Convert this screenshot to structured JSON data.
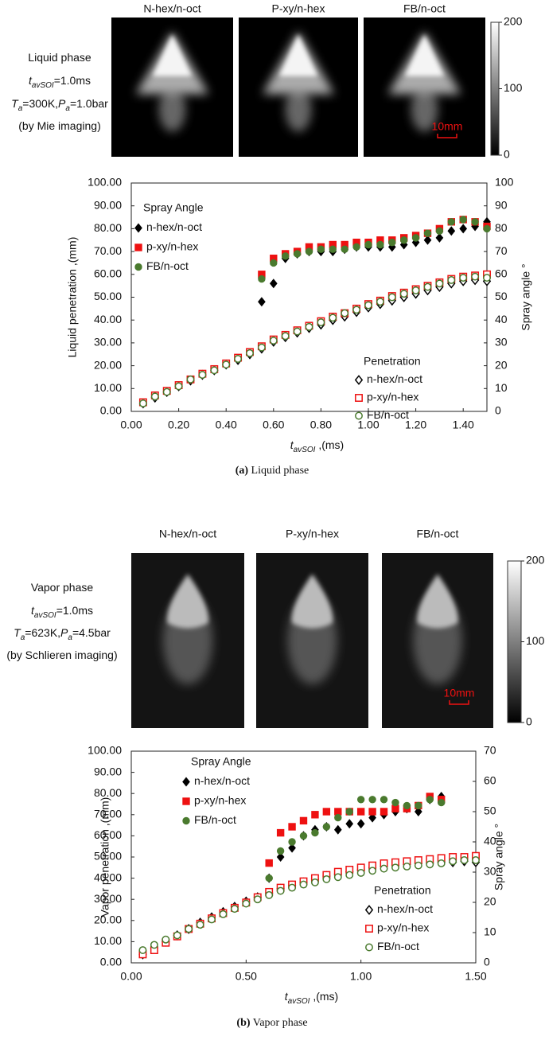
{
  "panels": [
    {
      "image_titles": [
        "N-hex/n-oct",
        "P-xy/n-hex",
        "FB/n-oct"
      ],
      "conditions": [
        [
          {
            "text": "Liquid phase"
          }
        ],
        [
          {
            "text": "t",
            "style": "italic"
          },
          {
            "text": "avSOI",
            "style": "italic-sub"
          },
          {
            "text": "=1.0ms"
          }
        ],
        [
          {
            "text": "T",
            "style": "italic"
          },
          {
            "text": "a",
            "style": "italic-sub"
          },
          {
            "text": "=300K,"
          },
          {
            "text": "P",
            "style": "italic"
          },
          {
            "text": "a",
            "style": "italic-sub"
          },
          {
            "text": "=1.0bar"
          }
        ],
        [
          {
            "text": "(by Mie imaging)"
          }
        ]
      ],
      "scale_bar": "10mm",
      "colorbar": {
        "lim": [
          0,
          200
        ],
        "ticks": [
          0,
          100,
          200
        ]
      },
      "caption": [
        {
          "text": "(a)",
          "style": "bold"
        },
        {
          "text": " Liquid phase"
        }
      ]
    },
    {
      "image_titles": [
        "N-hex/n-oct",
        "P-xy/n-hex",
        "FB/n-oct"
      ],
      "conditions": [
        [
          {
            "text": "Vapor phase"
          }
        ],
        [
          {
            "text": "t",
            "style": "italic"
          },
          {
            "text": "avSOI",
            "style": "italic-sub"
          },
          {
            "text": "=1.0ms"
          }
        ],
        [
          {
            "text": "T",
            "style": "italic"
          },
          {
            "text": "a",
            "style": "italic-sub"
          },
          {
            "text": "=623K,"
          },
          {
            "text": "P",
            "style": "italic"
          },
          {
            "text": "a",
            "style": "italic-sub"
          },
          {
            "text": "=4.5bar"
          }
        ],
        [
          {
            "text": "(by Schlieren imaging)"
          }
        ]
      ],
      "scale_bar": "10mm",
      "colorbar": {
        "lim": [
          0,
          200
        ],
        "ticks": [
          0,
          100,
          200
        ]
      },
      "caption": [
        {
          "text": "(b)",
          "style": "bold"
        },
        {
          "text": " Vapor phase"
        }
      ]
    }
  ],
  "chart_data": [
    {
      "type": "scatter",
      "x_label": [
        {
          "text": "t",
          "style": "italic"
        },
        {
          "text": "avSOI",
          "style": "italic-sub"
        },
        {
          "text": " ,(ms)"
        }
      ],
      "y_label": "Liquid penetration ,(mm)",
      "y2_label": "Spray angle °",
      "angle_legend_title": "Spray Angle",
      "penetration_legend_title": "Penetration",
      "xlim": [
        0,
        1.5
      ],
      "xticks": [
        {
          "value": 0,
          "label": "0.00"
        },
        {
          "value": 0.2,
          "label": "0.20"
        },
        {
          "value": 0.4,
          "label": "0.40"
        },
        {
          "value": 0.6,
          "label": "0.60"
        },
        {
          "value": 0.8,
          "label": "0.80"
        },
        {
          "value": 1.0,
          "label": "1.00"
        },
        {
          "value": 1.2,
          "label": "1.20"
        },
        {
          "value": 1.4,
          "label": "1.40"
        }
      ],
      "ylim": [
        0,
        100
      ],
      "yticks": [
        {
          "value": 0,
          "label": "0.00"
        },
        {
          "value": 10,
          "label": "10.00"
        },
        {
          "value": 20,
          "label": "20.00"
        },
        {
          "value": 30,
          "label": "30.00"
        },
        {
          "value": 40,
          "label": "40.00"
        },
        {
          "value": 50,
          "label": "50.00"
        },
        {
          "value": 60,
          "label": "60.00"
        },
        {
          "value": 70,
          "label": "70.00"
        },
        {
          "value": 80,
          "label": "80.00"
        },
        {
          "value": 90,
          "label": "90.00"
        },
        {
          "value": 100,
          "label": "100.00"
        }
      ],
      "y2lim": [
        0,
        100
      ],
      "y2ticks": [
        0,
        10,
        20,
        30,
        40,
        50,
        60,
        70,
        80,
        90,
        100
      ],
      "x": [
        0.05,
        0.1,
        0.15,
        0.2,
        0.25,
        0.3,
        0.35,
        0.4,
        0.45,
        0.5,
        0.55,
        0.6,
        0.65,
        0.7,
        0.75,
        0.8,
        0.85,
        0.9,
        0.95,
        1.0,
        1.05,
        1.1,
        1.15,
        1.2,
        1.25,
        1.3,
        1.35,
        1.4,
        1.45,
        1.5
      ],
      "series": [
        {
          "name": "n-hex/n-oct",
          "color": "#000000",
          "marker": "diamond",
          "filled": true,
          "axis": "y2",
          "values": [
            null,
            null,
            null,
            null,
            null,
            null,
            null,
            null,
            null,
            null,
            48,
            56,
            67,
            69,
            70,
            70,
            70,
            71,
            72,
            72,
            72,
            72,
            73,
            74,
            75,
            76,
            79,
            80,
            81,
            83
          ]
        },
        {
          "name": "p-xy/n-hex",
          "color": "#ee1111",
          "marker": "square",
          "filled": true,
          "axis": "y2",
          "values": [
            null,
            null,
            null,
            null,
            null,
            null,
            null,
            null,
            null,
            null,
            60,
            67,
            69,
            70,
            72,
            72,
            73,
            73,
            74,
            74,
            75,
            75,
            76,
            77,
            78,
            80,
            83,
            84,
            83,
            81
          ]
        },
        {
          "name": "FB/n-oct",
          "color": "#4a7a2e",
          "marker": "circle",
          "filled": true,
          "axis": "y2",
          "values": [
            null,
            null,
            null,
            null,
            null,
            null,
            null,
            null,
            null,
            null,
            58,
            65,
            68,
            69,
            70,
            71,
            71,
            71,
            72,
            73,
            73,
            74,
            75,
            76,
            78,
            79,
            83,
            84,
            83,
            80
          ]
        },
        {
          "name": "n-hex/n-oct",
          "color": "#000000",
          "marker": "diamond",
          "filled": false,
          "values": [
            3.5,
            6,
            8.5,
            11,
            13.5,
            16,
            18,
            20.5,
            22.5,
            25,
            27.5,
            30.5,
            32.5,
            34.5,
            36.5,
            38,
            40,
            41.5,
            43.5,
            45.5,
            47,
            48.5,
            50,
            51.5,
            53,
            54.5,
            56,
            57,
            57.5,
            57
          ]
        },
        {
          "name": "p-xy/n-hex",
          "color": "#ee1111",
          "marker": "square",
          "filled": false,
          "values": [
            4,
            7,
            9,
            11.5,
            14,
            16.5,
            18.5,
            21,
            23.5,
            26,
            28.5,
            31.5,
            33.5,
            35.5,
            37.5,
            39.5,
            41.5,
            43,
            45,
            47,
            48.5,
            50.5,
            52,
            53.5,
            55,
            56.5,
            58,
            59,
            59.5,
            60
          ]
        },
        {
          "name": "FB/n-oct",
          "color": "#4a7a2e",
          "marker": "circle",
          "filled": false,
          "values": [
            3.5,
            6.5,
            8.5,
            11,
            14,
            16,
            18,
            20.5,
            23,
            25.5,
            28,
            31,
            33,
            35,
            37,
            39,
            41,
            43,
            44.5,
            46.5,
            48,
            50,
            51.5,
            53,
            54.5,
            56,
            57.5,
            58.5,
            59,
            58.5
          ]
        }
      ]
    },
    {
      "type": "scatter",
      "x_label": [
        {
          "text": "t",
          "style": "italic"
        },
        {
          "text": "avSOI",
          "style": "italic-sub"
        },
        {
          "text": " ,(ms)"
        }
      ],
      "y_label": "Vapor penetration ,(mm)",
      "y2_label": "Spray angle °",
      "angle_legend_title": "Spray Angle",
      "penetration_legend_title": "Penetration",
      "xlim": [
        0,
        1.5
      ],
      "xticks": [
        {
          "value": 0,
          "label": "0.00"
        },
        {
          "value": 0.5,
          "label": "0.50"
        },
        {
          "value": 1.0,
          "label": "1.00"
        },
        {
          "value": 1.5,
          "label": "1.50"
        }
      ],
      "ylim": [
        0,
        100
      ],
      "yticks": [
        {
          "value": 0,
          "label": "0.00"
        },
        {
          "value": 10,
          "label": "10.00"
        },
        {
          "value": 20,
          "label": "20.00"
        },
        {
          "value": 30,
          "label": "30.00"
        },
        {
          "value": 40,
          "label": "40.00"
        },
        {
          "value": 50,
          "label": "50.00"
        },
        {
          "value": 60,
          "label": "60.00"
        },
        {
          "value": 70,
          "label": "70.00"
        },
        {
          "value": 80,
          "label": "80.00"
        },
        {
          "value": 90,
          "label": "90.00"
        },
        {
          "value": 100,
          "label": "100.00"
        }
      ],
      "y2lim": [
        0,
        70
      ],
      "y2ticks": [
        0,
        10,
        20,
        30,
        40,
        50,
        60,
        70
      ],
      "x": [
        0.05,
        0.1,
        0.15,
        0.2,
        0.25,
        0.3,
        0.35,
        0.4,
        0.45,
        0.5,
        0.55,
        0.6,
        0.65,
        0.7,
        0.75,
        0.8,
        0.85,
        0.9,
        0.95,
        1.0,
        1.05,
        1.1,
        1.15,
        1.2,
        1.25,
        1.3,
        1.35,
        1.4,
        1.45,
        1.5
      ],
      "series": [
        {
          "name": "n-hex/n-oct",
          "color": "#000000",
          "marker": "diamond",
          "filled": true,
          "axis": "y2",
          "values": [
            null,
            null,
            null,
            null,
            null,
            null,
            null,
            null,
            null,
            null,
            null,
            28,
            35,
            38,
            42,
            44,
            45,
            44,
            46,
            46,
            48,
            49,
            50,
            51,
            50,
            54,
            55,
            null,
            null,
            null
          ]
        },
        {
          "name": "p-xy/n-hex",
          "color": "#ee1111",
          "marker": "square",
          "filled": true,
          "axis": "y2",
          "values": [
            null,
            null,
            null,
            null,
            null,
            null,
            null,
            null,
            null,
            null,
            null,
            33,
            43,
            45,
            47,
            49,
            50,
            50,
            50,
            50,
            50,
            50,
            51,
            51,
            52,
            55,
            54,
            null,
            null,
            null
          ]
        },
        {
          "name": "FB/n-oct",
          "color": "#4a7a2e",
          "marker": "circle",
          "filled": true,
          "axis": "y2",
          "values": [
            null,
            null,
            null,
            null,
            null,
            null,
            null,
            null,
            null,
            null,
            null,
            28,
            37,
            40,
            42,
            43,
            45,
            48,
            50,
            54,
            54,
            54,
            53,
            52,
            52,
            54,
            53,
            null,
            null,
            null
          ]
        },
        {
          "name": "n-hex/n-oct",
          "color": "#000000",
          "marker": "diamond",
          "filled": false,
          "values": [
            4,
            7,
            10,
            13,
            16,
            19,
            21.5,
            24,
            26.5,
            29,
            31,
            33,
            35,
            36.5,
            38,
            39.5,
            41,
            42,
            43,
            44,
            45,
            45.5,
            46,
            46.5,
            47,
            47,
            47.5,
            47.5,
            48,
            47.5
          ]
        },
        {
          "name": "p-xy/n-hex",
          "color": "#ee1111",
          "marker": "square",
          "filled": false,
          "values": [
            4,
            6,
            9.5,
            12.5,
            16,
            18.5,
            21,
            23.5,
            26,
            28.5,
            31,
            33.5,
            35.5,
            37,
            38.5,
            40,
            41.5,
            43,
            44,
            45,
            46,
            47,
            47.5,
            48,
            48.5,
            49,
            49.5,
            50,
            50,
            50.5
          ]
        },
        {
          "name": "FB/n-oct",
          "color": "#4a7a2e",
          "marker": "circle",
          "filled": false,
          "values": [
            6,
            8.5,
            11,
            13,
            16,
            18,
            20.5,
            23,
            25.5,
            28,
            30,
            32,
            34,
            35.5,
            37,
            38,
            39.5,
            40.5,
            41.5,
            42.5,
            43.5,
            44.5,
            45,
            45.5,
            46,
            46.5,
            47,
            48,
            48.5,
            48.5
          ]
        }
      ]
    }
  ]
}
